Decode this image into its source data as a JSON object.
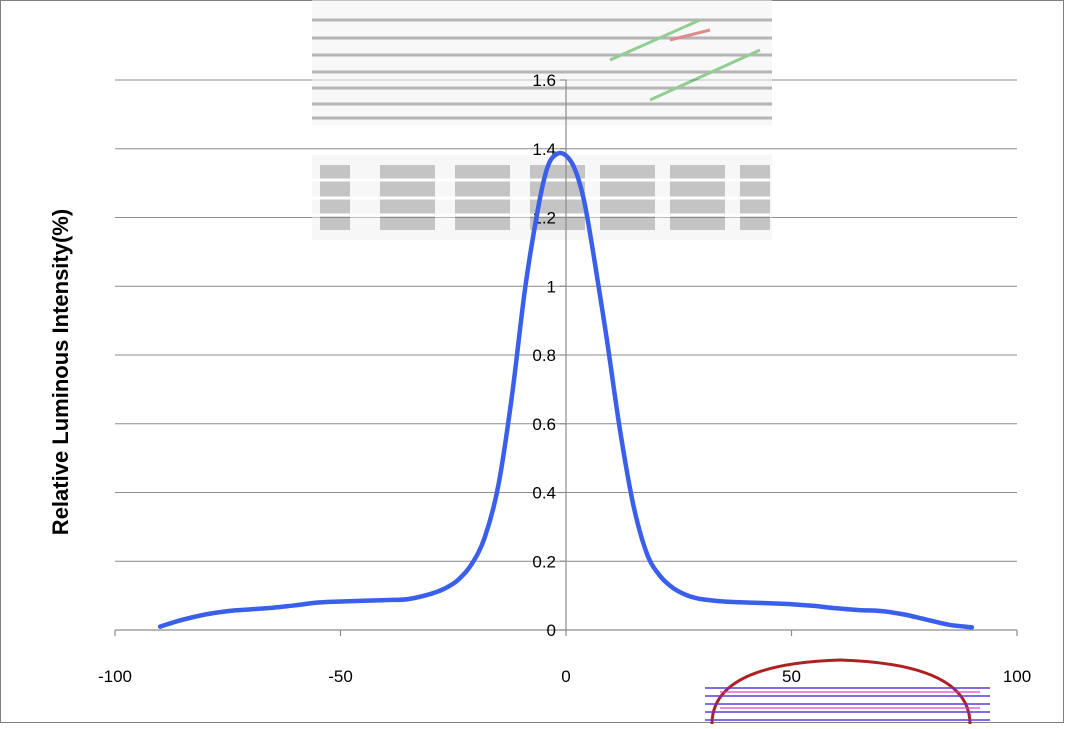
{
  "chart_data": {
    "type": "line",
    "ylabel": "Relative Luminous Intensity(%)",
    "xlim": [
      -100,
      100
    ],
    "ylim": [
      0,
      1.6
    ],
    "x_ticks": [
      -100,
      -50,
      0,
      50,
      100
    ],
    "x_tick_labels": [
      "-100",
      "-50",
      "0",
      "50",
      "100"
    ],
    "y_ticks": [
      0,
      0.2,
      0.4,
      0.6,
      0.8,
      1,
      1.2,
      1.4,
      1.6
    ],
    "y_tick_labels": [
      "0",
      "0.2",
      "0.4",
      "0.6",
      "0.8",
      "1",
      "1.2",
      "1.4",
      "1.6"
    ],
    "grid": "horizontal",
    "series": [
      {
        "color": "#3A5FEA",
        "x": [
          -90,
          -85,
          -80,
          -75,
          -70,
          -65,
          -60,
          -55,
          -50,
          -45,
          -40,
          -35,
          -30,
          -27,
          -24,
          -21,
          -18,
          -15,
          -12,
          -9,
          -6,
          -4,
          -2,
          0,
          2,
          4,
          6,
          9,
          12,
          15,
          18,
          21,
          24,
          27,
          30,
          35,
          40,
          45,
          50,
          55,
          60,
          65,
          70,
          75,
          80,
          85,
          90
        ],
        "y": [
          0.01,
          0.03,
          0.045,
          0.055,
          0.06,
          0.065,
          0.072,
          0.08,
          0.083,
          0.085,
          0.087,
          0.09,
          0.105,
          0.12,
          0.145,
          0.19,
          0.27,
          0.42,
          0.68,
          1.0,
          1.24,
          1.35,
          1.385,
          1.38,
          1.34,
          1.25,
          1.1,
          0.85,
          0.58,
          0.36,
          0.22,
          0.155,
          0.12,
          0.1,
          0.09,
          0.083,
          0.08,
          0.078,
          0.075,
          0.07,
          0.063,
          0.058,
          0.055,
          0.045,
          0.03,
          0.015,
          0.008
        ]
      }
    ],
    "watermarks": [
      "image-strip-top",
      "logo-text-strip",
      "seal-stamp"
    ]
  }
}
